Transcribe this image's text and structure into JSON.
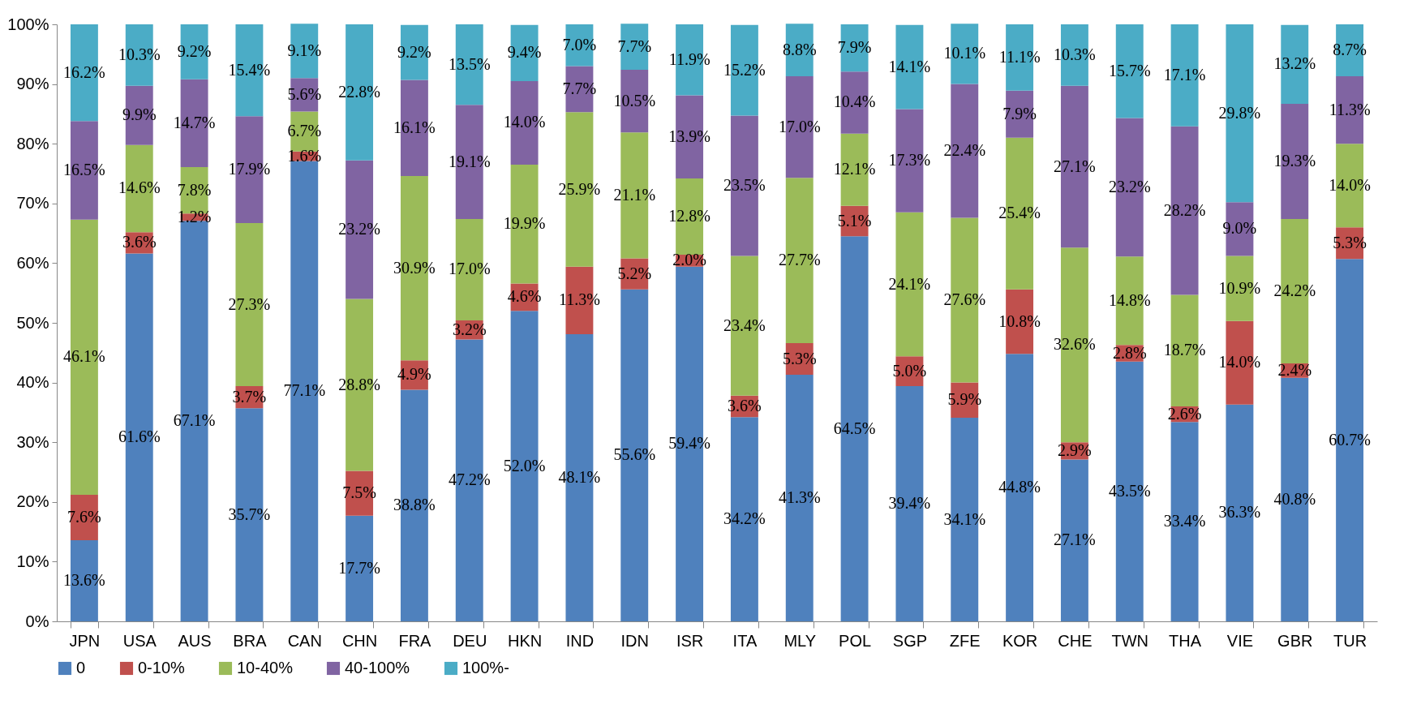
{
  "chart_data": {
    "type": "bar",
    "stacked": true,
    "legend": "bottom",
    "grid": false,
    "categories": [
      "JPN",
      "USA",
      "AUS",
      "BRA",
      "CAN",
      "CHN",
      "FRA",
      "DEU",
      "HKN",
      "IND",
      "IDN",
      "ISR",
      "ITA",
      "MLY",
      "POL",
      "SGP",
      "ZFE",
      "KOR",
      "CHE",
      "TWN",
      "THA",
      "VIE",
      "GBR",
      "TUR"
    ],
    "ylim": [
      0,
      100
    ],
    "yticks": [
      {
        "value": 0,
        "label": "0%"
      },
      {
        "value": 10,
        "label": "10%"
      },
      {
        "value": 20,
        "label": "20%"
      },
      {
        "value": 30,
        "label": "30%"
      },
      {
        "value": 40,
        "label": "40%"
      },
      {
        "value": 50,
        "label": "50%"
      },
      {
        "value": 60,
        "label": "60%"
      },
      {
        "value": 70,
        "label": "70%"
      },
      {
        "value": 80,
        "label": "80%"
      },
      {
        "value": 90,
        "label": "90%"
      },
      {
        "value": 100,
        "label": "100%"
      }
    ],
    "series": [
      {
        "name": "0",
        "color": "#4f81bd",
        "values": [
          13.6,
          61.6,
          67.1,
          35.7,
          77.1,
          17.7,
          38.8,
          47.2,
          52.0,
          48.1,
          55.6,
          59.4,
          34.2,
          41.3,
          64.5,
          39.4,
          34.1,
          44.8,
          27.1,
          43.5,
          33.4,
          36.3,
          40.8,
          60.7
        ],
        "value_labels": [
          "13.6%",
          "61.6%",
          "67.1%",
          "35.7%",
          "77.1%",
          "17.7%",
          "38.8%",
          "47.2%",
          "52.0%",
          "48.1%",
          "55.6%",
          "59.4%",
          "34.2%",
          "41.3%",
          "64.5%",
          "39.4%",
          "34.1%",
          "44.8%",
          "27.1%",
          "43.5%",
          "33.4%",
          "36.3%",
          "40.8%",
          "60.7%"
        ]
      },
      {
        "name": "0-10%",
        "color": "#c0504d",
        "values": [
          7.6,
          3.6,
          1.2,
          3.7,
          1.6,
          7.5,
          4.9,
          3.2,
          4.6,
          11.3,
          5.2,
          2.0,
          3.6,
          5.3,
          5.1,
          5.0,
          5.9,
          10.8,
          2.9,
          2.8,
          2.6,
          14.0,
          2.4,
          5.3
        ],
        "value_labels": [
          "7.6%",
          "3.6%",
          "1.2%",
          "3.7%",
          "1.6%",
          "7.5%",
          "4.9%",
          "3.2%",
          "4.6%",
          "11.3%",
          "5.2%",
          "2.0%",
          "3.6%",
          "5.3%",
          "5.1%",
          "5.0%",
          "5.9%",
          "10.8%",
          "2.9%",
          "2.8%",
          "2.6%",
          "14.0%",
          "2.4%",
          "5.3%"
        ]
      },
      {
        "name": "10-40%",
        "color": "#9bbb59",
        "values": [
          46.1,
          14.6,
          7.8,
          27.3,
          6.7,
          28.8,
          30.9,
          17.0,
          19.9,
          25.9,
          21.1,
          12.8,
          23.4,
          27.7,
          12.1,
          24.1,
          27.6,
          25.4,
          32.6,
          14.8,
          18.7,
          10.9,
          24.2,
          14.0
        ],
        "value_labels": [
          "46.1%",
          "14.6%",
          "7.8%",
          "27.3%",
          "6.7%",
          "28.8%",
          "30.9%",
          "17.0%",
          "19.9%",
          "25.9%",
          "21.1%",
          "12.8%",
          "23.4%",
          "27.7%",
          "12.1%",
          "24.1%",
          "27.6%",
          "25.4%",
          "32.6%",
          "14.8%",
          "18.7%",
          "10.9%",
          "24.2%",
          "14.0%"
        ]
      },
      {
        "name": "40-100%",
        "color": "#8064a2",
        "values": [
          16.5,
          9.9,
          14.7,
          17.9,
          5.6,
          23.2,
          16.1,
          19.1,
          14.0,
          7.7,
          10.5,
          13.9,
          23.5,
          17.0,
          10.4,
          17.3,
          22.4,
          7.9,
          27.1,
          23.2,
          28.2,
          9.0,
          19.3,
          11.3
        ],
        "value_labels": [
          "16.5%",
          "9.9%",
          "14.7%",
          "17.9%",
          "5.6%",
          "23.2%",
          "16.1%",
          "19.1%",
          "14.0%",
          "7.7%",
          "10.5%",
          "13.9%",
          "23.5%",
          "17.0%",
          "10.4%",
          "17.3%",
          "22.4%",
          "7.9%",
          "27.1%",
          "23.2%",
          "28.2%",
          "9.0%",
          "19.3%",
          "11.3%"
        ]
      },
      {
        "name": "100%-",
        "color": "#4bacc6",
        "values": [
          16.2,
          10.3,
          9.2,
          15.4,
          9.1,
          22.8,
          9.2,
          13.5,
          9.4,
          7.0,
          7.7,
          11.9,
          15.2,
          8.8,
          7.9,
          14.1,
          10.1,
          11.1,
          10.3,
          15.7,
          17.1,
          29.8,
          13.2,
          8.7
        ],
        "value_labels": [
          "16.2%",
          "10.3%",
          "9.2%",
          "15.4%",
          "9.1%",
          "22.8%",
          "9.2%",
          "13.5%",
          "9.4%",
          "7.0%",
          "7.7%",
          "11.9%",
          "15.2%",
          "8.8%",
          "7.9%",
          "14.1%",
          "10.1%",
          "11.1%",
          "10.3%",
          "15.7%",
          "17.1%",
          "29.8%",
          "13.2%",
          "8.7%"
        ]
      }
    ]
  }
}
